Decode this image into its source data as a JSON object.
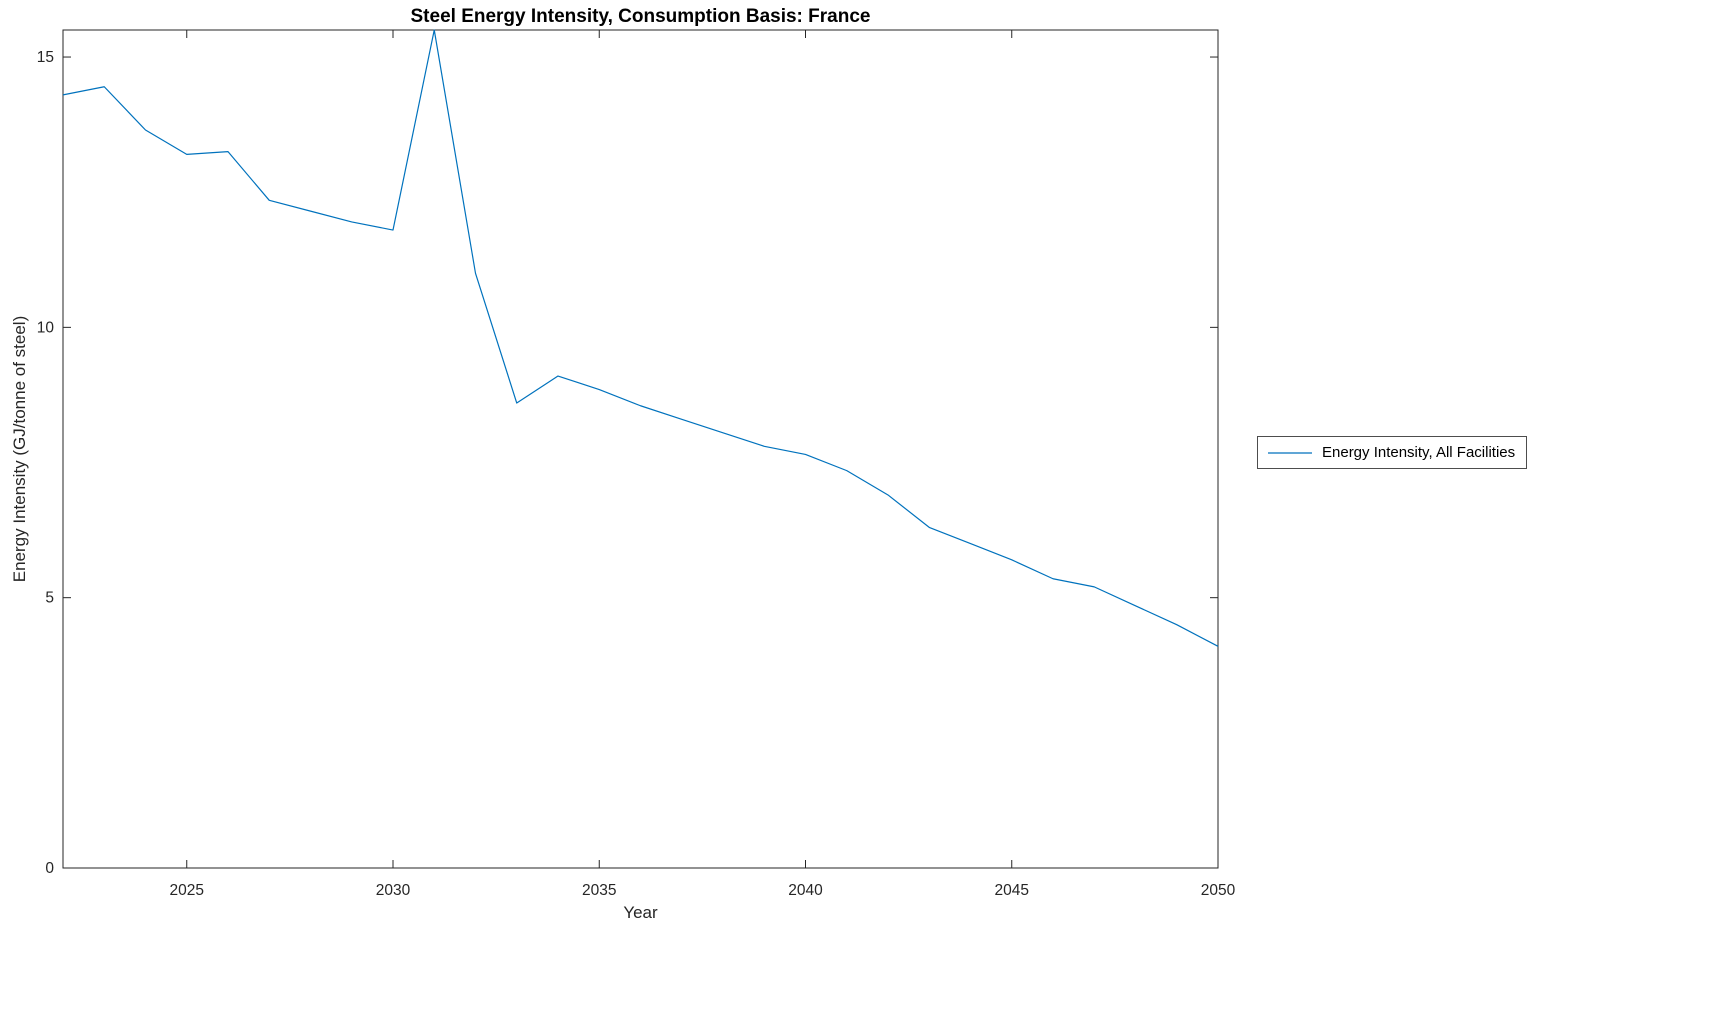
{
  "chart_data": {
    "type": "line",
    "title": "Steel Energy Intensity, Consumption Basis: France",
    "xlabel": "Year",
    "ylabel": "Energy Intensity (GJ/tonne of steel)",
    "x": [
      2022,
      2023,
      2024,
      2025,
      2026,
      2027,
      2028,
      2029,
      2030,
      2031,
      2032,
      2033,
      2034,
      2035,
      2036,
      2037,
      2038,
      2039,
      2040,
      2041,
      2042,
      2043,
      2044,
      2045,
      2046,
      2047,
      2048,
      2049,
      2050
    ],
    "series": [
      {
        "name": "Energy Intensity, All Facilities",
        "color": "#0072BD",
        "values": [
          14.3,
          14.45,
          13.65,
          13.2,
          13.25,
          12.35,
          12.15,
          11.95,
          11.8,
          15.5,
          11.0,
          8.6,
          9.1,
          8.85,
          8.55,
          8.3,
          8.05,
          7.8,
          7.65,
          7.35,
          6.9,
          6.3,
          6.0,
          5.7,
          5.35,
          5.2,
          4.85,
          4.5,
          4.1
        ]
      }
    ],
    "xlim": [
      2022,
      2050
    ],
    "ylim": [
      0,
      15.5
    ],
    "x_ticks": [
      2025,
      2030,
      2035,
      2040,
      2045,
      2050
    ],
    "y_ticks": [
      0,
      5,
      10,
      15
    ],
    "grid": false,
    "legend_position": "right-outside",
    "axis_color": "#262626",
    "background_color": "#ffffff"
  }
}
